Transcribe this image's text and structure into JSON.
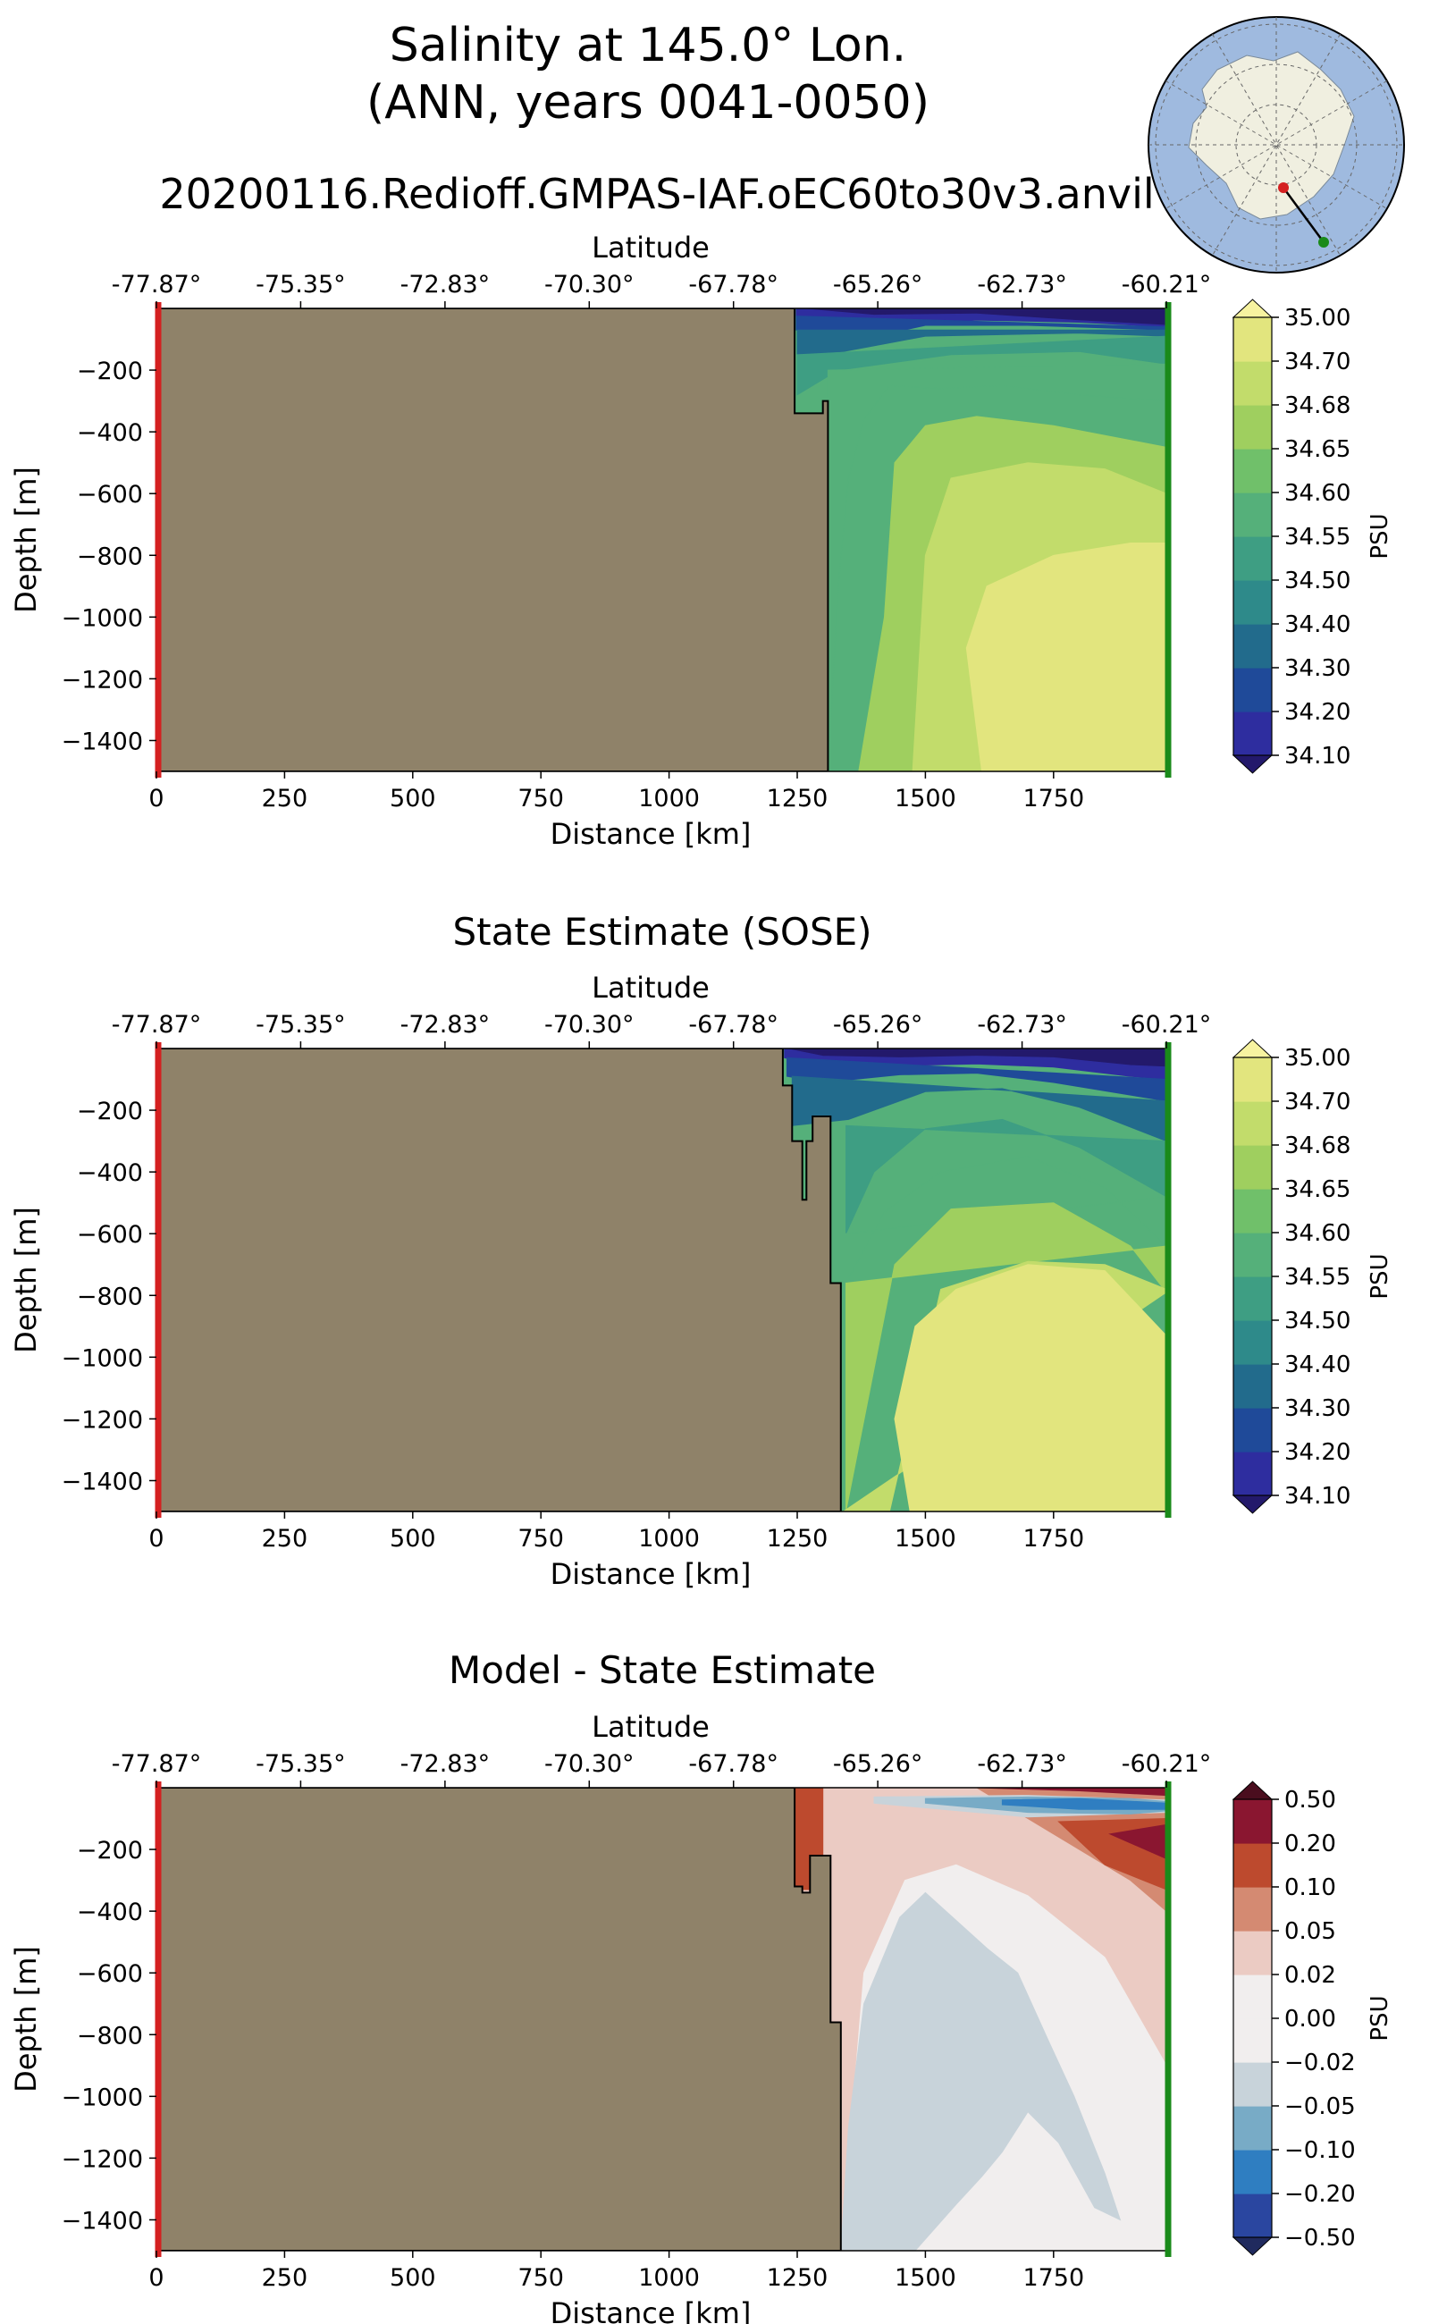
{
  "figure": {
    "title_line1": "Salinity at 145.0° Lon.",
    "title_line2": "(ANN, years 0041-0050)",
    "run_name": "20200116.Redioff.GMPAS-IAF.oEC60to30v3.anvil"
  },
  "colors": {
    "land": "#8f8269",
    "left_marker": "#d42020",
    "right_marker": "#1a8a1a",
    "ocean_map": "#9fbadf",
    "antarctica": "#f0efe0"
  },
  "chart_data": [
    {
      "type": "contourf",
      "title": "",
      "xlabel": "Distance [km]",
      "ylabel": "Depth [m]",
      "top_label": "Latitude",
      "xlim": [
        0,
        1970
      ],
      "ylim": [
        -1500,
        0
      ],
      "x_ticks": [
        0,
        250,
        500,
        750,
        1000,
        1250,
        1500,
        1750
      ],
      "x_tick_labels": [
        "0",
        "250",
        "500",
        "750",
        "1000",
        "1250",
        "1500",
        "1750"
      ],
      "y_ticks": [
        -200,
        -400,
        -600,
        -800,
        -1000,
        -1200,
        -1400
      ],
      "y_tick_labels": [
        "−200",
        "−400",
        "−600",
        "−800",
        "−1000",
        "−1200",
        "−1400"
      ],
      "lat_ticks": [
        0,
        281.4,
        562.9,
        844.3,
        1125.7,
        1407.1,
        1688.6,
        1970
      ],
      "lat_tick_labels": [
        "-77.87°",
        "-75.35°",
        "-72.83°",
        "-70.30°",
        "-67.78°",
        "-65.26°",
        "-62.73°",
        "-60.21°"
      ],
      "colorbar_label": "PSU",
      "colorbar_tick_labels": [
        "35.00",
        "34.70",
        "34.68",
        "34.65",
        "34.60",
        "34.55",
        "34.50",
        "34.40",
        "34.30",
        "34.20",
        "34.10"
      ],
      "colorbar_colors": [
        "#23196b",
        "#2e2d9f",
        "#1f4a99",
        "#226b8c",
        "#2e8a8a",
        "#3e9e83",
        "#55b07a",
        "#70c06a",
        "#9fcf5f",
        "#c2dc6b",
        "#e2e57e",
        "#f7f3a0"
      ],
      "land_profile": {
        "distance_km": [
          0,
          1245,
          1245,
          1300,
          1300,
          1310,
          1310
        ],
        "depth_m": [
          0,
          0,
          -340,
          -340,
          -300,
          -300,
          -1500
        ]
      },
      "levels": [
        {
          "color": "#23196b",
          "distance_km": [
            1248,
            1400,
            1600,
            1800,
            1970,
            1970,
            1248
          ],
          "depth_m": [
            0,
            -22,
            -18,
            -40,
            -55,
            0,
            0
          ]
        },
        {
          "color": "#2e2d9f",
          "distance_km": [
            1248,
            1400,
            1600,
            1800,
            1970,
            1970,
            1800,
            1600,
            1400,
            1248
          ],
          "depth_m": [
            -25,
            -60,
            -38,
            -45,
            -60,
            -55,
            -40,
            -18,
            -22,
            0
          ]
        },
        {
          "color": "#1f4a99",
          "distance_km": [
            1248,
            1350,
            1500,
            1700,
            1970,
            1970,
            1248
          ],
          "depth_m": [
            -70,
            -110,
            -55,
            -55,
            -70,
            -60,
            -25
          ]
        },
        {
          "color": "#226b8c",
          "distance_km": [
            1250,
            1340,
            1500,
            1800,
            1970,
            1970,
            1250
          ],
          "depth_m": [
            -150,
            -140,
            -90,
            -80,
            -90,
            -70,
            -70
          ]
        },
        {
          "color": "#3e9e83",
          "distance_km": [
            1250,
            1330,
            1550,
            1800,
            1970,
            1970,
            1250
          ],
          "depth_m": [
            -280,
            -200,
            -150,
            -140,
            -180,
            -90,
            -150
          ]
        },
        {
          "color": "#55b07a",
          "distance_km": [
            1310,
            1330,
            1350,
            1380,
            1430,
            1530,
            1650,
            1800,
            1970,
            1970,
            1310
          ],
          "depth_m": [
            -1500,
            -900,
            -550,
            -360,
            -250,
            -260,
            -250,
            -280,
            -300,
            -180,
            -200
          ]
        },
        {
          "color": "#9fcf5f",
          "distance_km": [
            1370,
            1420,
            1440,
            1500,
            1600,
            1750,
            1970,
            1970,
            1370
          ],
          "depth_m": [
            -1500,
            -1000,
            -500,
            -380,
            -350,
            -380,
            -450,
            -1500,
            -1500
          ]
        },
        {
          "color": "#c2dc6b",
          "distance_km": [
            1475,
            1500,
            1550,
            1700,
            1850,
            1970,
            1970,
            1475
          ],
          "depth_m": [
            -1500,
            -800,
            -550,
            -500,
            -520,
            -600,
            -1500,
            -1500
          ]
        },
        {
          "color": "#e2e57e",
          "distance_km": [
            1610,
            1580,
            1620,
            1750,
            1900,
            1970,
            1970,
            1610
          ],
          "depth_m": [
            -1500,
            -1100,
            -900,
            -800,
            -760,
            -760,
            -1500,
            -1500
          ]
        }
      ]
    },
    {
      "type": "contourf",
      "title": "State Estimate (SOSE)",
      "xlabel": "Distance [km]",
      "ylabel": "Depth [m]",
      "top_label": "Latitude",
      "xlim": [
        0,
        1970
      ],
      "ylim": [
        -1500,
        0
      ],
      "x_ticks": [
        0,
        250,
        500,
        750,
        1000,
        1250,
        1500,
        1750
      ],
      "x_tick_labels": [
        "0",
        "250",
        "500",
        "750",
        "1000",
        "1250",
        "1500",
        "1750"
      ],
      "y_ticks": [
        -200,
        -400,
        -600,
        -800,
        -1000,
        -1200,
        -1400
      ],
      "y_tick_labels": [
        "−200",
        "−400",
        "−600",
        "−800",
        "−1000",
        "−1200",
        "−1400"
      ],
      "lat_ticks": [
        0,
        281.4,
        562.9,
        844.3,
        1125.7,
        1407.1,
        1688.6,
        1970
      ],
      "lat_tick_labels": [
        "-77.87°",
        "-75.35°",
        "-72.83°",
        "-70.30°",
        "-67.78°",
        "-65.26°",
        "-62.73°",
        "-60.21°"
      ],
      "colorbar_label": "PSU",
      "colorbar_tick_labels": [
        "35.00",
        "34.70",
        "34.68",
        "34.65",
        "34.60",
        "34.55",
        "34.50",
        "34.40",
        "34.30",
        "34.20",
        "34.10"
      ],
      "colorbar_colors": [
        "#23196b",
        "#2e2d9f",
        "#1f4a99",
        "#226b8c",
        "#2e8a8a",
        "#3e9e83",
        "#55b07a",
        "#70c06a",
        "#9fcf5f",
        "#c2dc6b",
        "#e2e57e",
        "#f7f3a0"
      ],
      "land_profile": {
        "distance_km": [
          0,
          1222,
          1222,
          1240,
          1240,
          1260,
          1260,
          1268,
          1268,
          1280,
          1280,
          1315,
          1315,
          1335,
          1335
        ],
        "depth_m": [
          0,
          0,
          -120,
          -120,
          -300,
          -300,
          -490,
          -490,
          -300,
          -300,
          -220,
          -220,
          -760,
          -760,
          -1500
        ]
      },
      "levels": [
        {
          "color": "#23196b",
          "distance_km": [
            1225,
            1300,
            1450,
            1600,
            1750,
            1900,
            1970,
            1970,
            1225
          ],
          "depth_m": [
            0,
            -25,
            -30,
            -25,
            -30,
            -55,
            -60,
            0,
            0
          ]
        },
        {
          "color": "#2e2d9f",
          "distance_km": [
            1225,
            1300,
            1450,
            1600,
            1750,
            1900,
            1970,
            1970,
            1900,
            1750,
            1600,
            1450,
            1300,
            1225
          ],
          "depth_m": [
            -30,
            -60,
            -55,
            -50,
            -60,
            -90,
            -100,
            -60,
            -55,
            -30,
            -25,
            -30,
            -25,
            0
          ]
        },
        {
          "color": "#1f4a99",
          "distance_km": [
            1230,
            1300,
            1450,
            1600,
            1750,
            1970,
            1970,
            1230
          ],
          "depth_m": [
            -90,
            -110,
            -85,
            -80,
            -110,
            -170,
            -100,
            -30
          ]
        },
        {
          "color": "#226b8c",
          "distance_km": [
            1240,
            1350,
            1500,
            1650,
            1800,
            1970,
            1970,
            1240
          ],
          "depth_m": [
            -250,
            -230,
            -140,
            -130,
            -190,
            -300,
            -170,
            -90
          ]
        },
        {
          "color": "#3e9e83",
          "distance_km": [
            1345,
            1400,
            1500,
            1650,
            1800,
            1970,
            1970,
            1345
          ],
          "depth_m": [
            -600,
            -400,
            -260,
            -230,
            -320,
            -480,
            -300,
            -250
          ]
        },
        {
          "color": "#55b07a",
          "distance_km": [
            1345,
            1420,
            1530,
            1700,
            1850,
            1970,
            1970,
            1345
          ],
          "depth_m": [
            -760,
            -530,
            -400,
            -350,
            -450,
            -640,
            -480,
            -600
          ]
        },
        {
          "color": "#9fcf5f",
          "distance_km": [
            1345,
            1440,
            1550,
            1750,
            1900,
            1970,
            1970,
            1345
          ],
          "depth_m": [
            -1500,
            -700,
            -520,
            -500,
            -640,
            -790,
            -640,
            -760
          ]
        },
        {
          "color": "#c2dc6b",
          "distance_km": [
            1340,
            1430,
            1530,
            1700,
            1850,
            1970,
            1970,
            1340
          ],
          "depth_m": [
            -1500,
            -1500,
            -780,
            -690,
            -700,
            -780,
            -790,
            -1500
          ]
        },
        {
          "color": "#e2e57e",
          "distance_km": [
            1470,
            1440,
            1480,
            1560,
            1700,
            1850,
            1970,
            1970,
            1470
          ],
          "depth_m": [
            -1500,
            -1200,
            -900,
            -780,
            -700,
            -720,
            -930,
            -1500,
            -1500
          ]
        }
      ]
    },
    {
      "type": "contourf",
      "title": "Model - State Estimate",
      "xlabel": "Distance [km]",
      "ylabel": "Depth [m]",
      "top_label": "Latitude",
      "xlim": [
        0,
        1970
      ],
      "ylim": [
        -1500,
        0
      ],
      "x_ticks": [
        0,
        250,
        500,
        750,
        1000,
        1250,
        1500,
        1750
      ],
      "x_tick_labels": [
        "0",
        "250",
        "500",
        "750",
        "1000",
        "1250",
        "1500",
        "1750"
      ],
      "y_ticks": [
        -200,
        -400,
        -600,
        -800,
        -1000,
        -1200,
        -1400
      ],
      "y_tick_labels": [
        "−200",
        "−400",
        "−600",
        "−800",
        "−1000",
        "−1200",
        "−1400"
      ],
      "lat_ticks": [
        0,
        281.4,
        562.9,
        844.3,
        1125.7,
        1407.1,
        1688.6,
        1970
      ],
      "lat_tick_labels": [
        "-77.87°",
        "-75.35°",
        "-72.83°",
        "-70.30°",
        "-67.78°",
        "-65.26°",
        "-62.73°",
        "-60.21°"
      ],
      "colorbar_label": "PSU",
      "colorbar_tick_labels": [
        "0.50",
        "0.20",
        "0.10",
        "0.05",
        "0.02",
        "0.00",
        "−0.02",
        "−0.05",
        "−0.10",
        "−0.20",
        "−0.50"
      ],
      "colorbar_colors": [
        "#202a5e",
        "#2a46a0",
        "#2f7ec1",
        "#78abc6",
        "#c8d3da",
        "#f1eeee",
        "#f1eeee",
        "#ebcbc3",
        "#d48a72",
        "#bd4a2e",
        "#8a1630",
        "#4a0d1e"
      ],
      "land_profile": {
        "distance_km": [
          0,
          1245,
          1245,
          1260,
          1260,
          1275,
          1275,
          1315,
          1315,
          1335,
          1335
        ],
        "depth_m": [
          0,
          0,
          -320,
          -320,
          -340,
          -340,
          -220,
          -220,
          -760,
          -760,
          -1500
        ]
      },
      "levels": [
        {
          "color": "#ebcbc3",
          "distance_km": [
            1245,
            1970,
            1970,
            1245
          ],
          "depth_m": [
            0,
            0,
            -640,
            -640
          ]
        },
        {
          "color": "#d48a72",
          "distance_km": [
            1245,
            1600,
            1750,
            1900,
            1970,
            1970,
            1245
          ],
          "depth_m": [
            0,
            0,
            -150,
            -300,
            -400,
            0,
            0
          ]
        },
        {
          "color": "#bd4a2e",
          "distance_km": [
            1760,
            1850,
            1970,
            1970,
            1760
          ],
          "depth_m": [
            -110,
            -250,
            -330,
            -100,
            -110
          ]
        },
        {
          "color": "#8a1630",
          "distance_km": [
            1860,
            1970,
            1970,
            1860
          ],
          "depth_m": [
            -150,
            -230,
            -120,
            -150
          ]
        },
        {
          "color": "#bd4a2e",
          "distance_km": [
            1245,
            1300,
            1300,
            1260,
            1245
          ],
          "depth_m": [
            0,
            0,
            -330,
            -330,
            -320
          ]
        },
        {
          "color": "#8a1630",
          "distance_km": [
            1300,
            1600,
            1800,
            1970,
            1970,
            1300
          ],
          "depth_m": [
            0,
            0,
            -10,
            -25,
            0,
            0
          ]
        },
        {
          "color": "#f1eeee",
          "distance_km": [
            1335,
            1380,
            1460,
            1560,
            1700,
            1850,
            1970,
            1970,
            1900,
            1700,
            1550,
            1400,
            1330,
            1335
          ],
          "depth_m": [
            -1500,
            -600,
            -300,
            -250,
            -350,
            -550,
            -900,
            -1500,
            -1500,
            -1500,
            -1500,
            -1500,
            -1500,
            -1500
          ]
        },
        {
          "color": "#c8d3da",
          "distance_km": [
            1335,
            1350,
            1380,
            1450,
            1500,
            1560,
            1620,
            1680,
            1740,
            1790,
            1850,
            1880,
            1830,
            1760,
            1700,
            1650,
            1610,
            1560,
            1480,
            1335
          ],
          "depth_m": [
            -1500,
            -1100,
            -700,
            -420,
            -340,
            -430,
            -520,
            -600,
            -820,
            -1000,
            -1250,
            -1400,
            -1360,
            -1150,
            -1050,
            -1180,
            -1260,
            -1350,
            -1500,
            -1500
          ]
        },
        {
          "color": "#c8d3da",
          "distance_km": [
            1400,
            1700,
            1970,
            1970,
            1700,
            1400
          ],
          "depth_m": [
            -30,
            -25,
            -40,
            -80,
            -95,
            -50
          ]
        },
        {
          "color": "#78abc6",
          "distance_km": [
            1500,
            1700,
            1900,
            1970,
            1970,
            1900,
            1700,
            1500
          ],
          "depth_m": [
            -35,
            -30,
            -35,
            -45,
            -75,
            -85,
            -80,
            -50
          ]
        },
        {
          "color": "#2f7ec1",
          "distance_km": [
            1650,
            1800,
            1970,
            1970,
            1800,
            1650
          ],
          "depth_m": [
            -40,
            -35,
            -50,
            -70,
            -70,
            -55
          ]
        }
      ]
    }
  ]
}
